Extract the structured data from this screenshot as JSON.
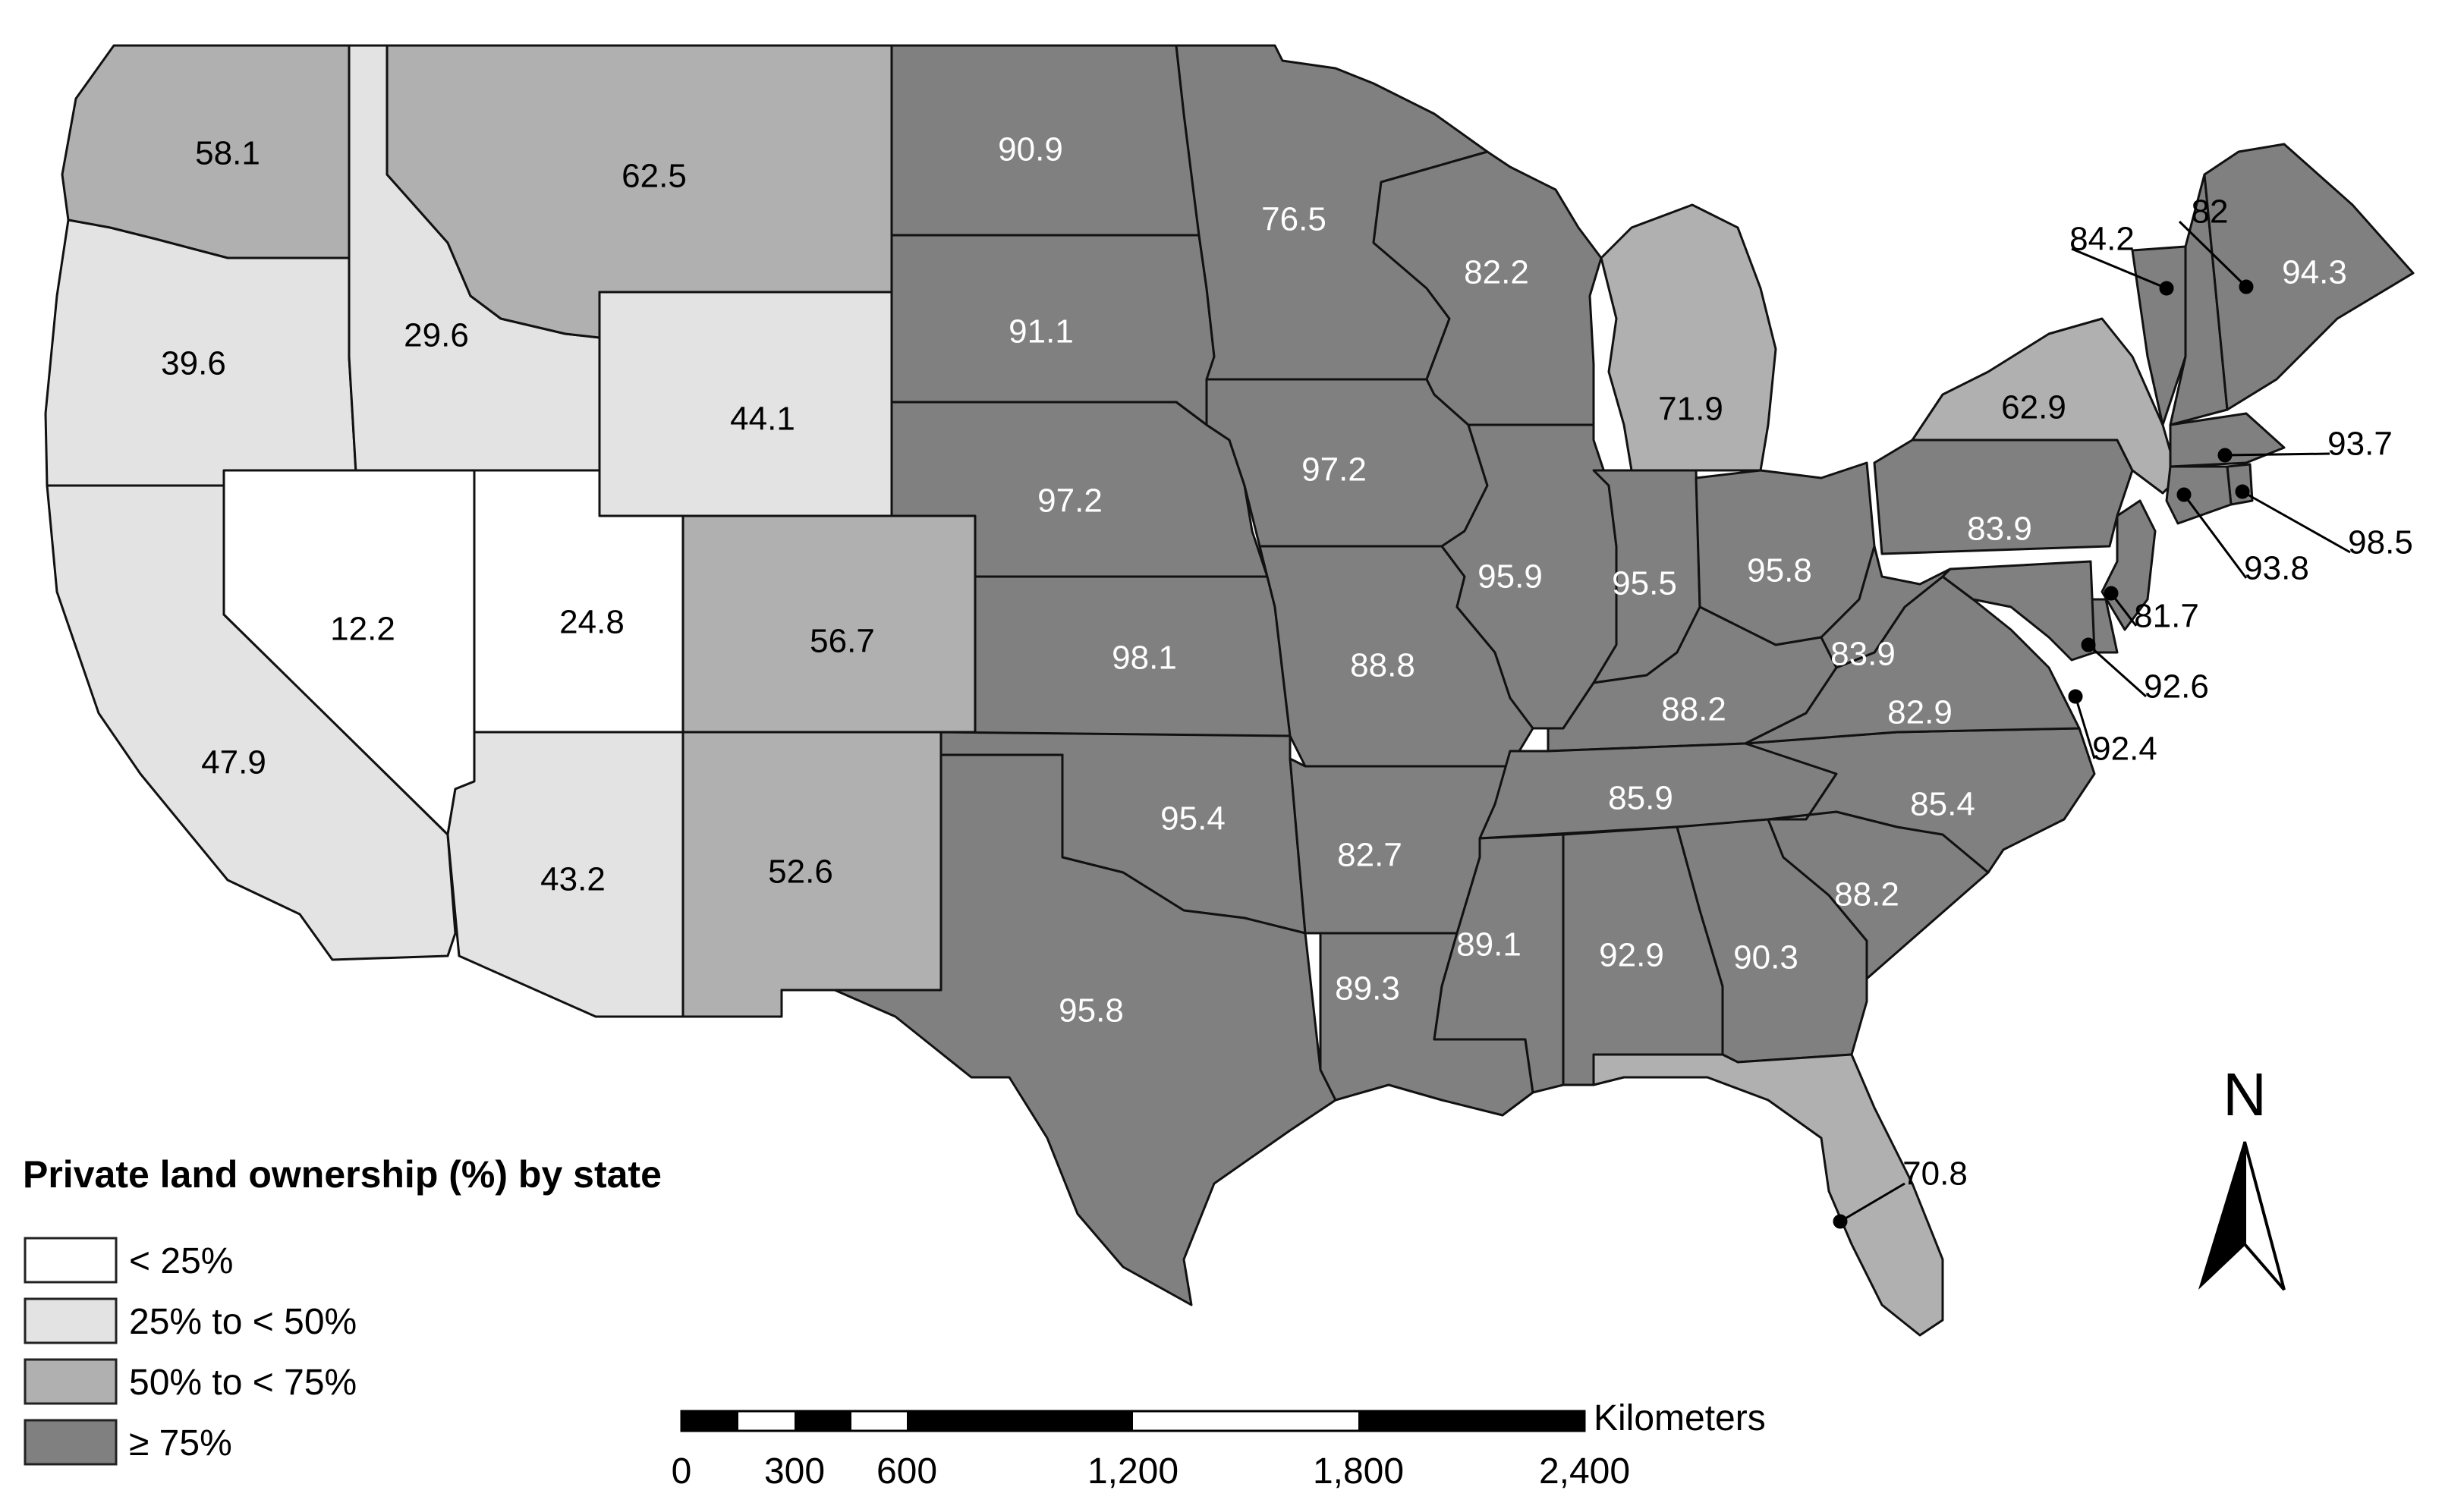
{
  "legend": {
    "title": "Private land ownership (%) by state",
    "classes": [
      {
        "label": "< 25%",
        "color": "#ffffff"
      },
      {
        "label": "25% to < 50%",
        "color": "#e3e3e3"
      },
      {
        "label": "50% to < 75%",
        "color": "#b0b0b0"
      },
      {
        "label": "≥ 75%",
        "color": "#808080"
      }
    ]
  },
  "north_arrow": {
    "label": "N"
  },
  "scale_bar": {
    "unit": "Kilometers",
    "ticks": [
      "0",
      "300",
      "600",
      "1,200",
      "1,800",
      "2,400"
    ]
  },
  "states": [
    {
      "id": "WA",
      "value": "58.1"
    },
    {
      "id": "OR",
      "value": "39.6"
    },
    {
      "id": "ID",
      "value": "29.6"
    },
    {
      "id": "MT",
      "value": "62.5"
    },
    {
      "id": "WY",
      "value": "44.1"
    },
    {
      "id": "CA",
      "value": "47.9"
    },
    {
      "id": "NV",
      "value": "12.2"
    },
    {
      "id": "UT",
      "value": "24.8"
    },
    {
      "id": "CO",
      "value": "56.7"
    },
    {
      "id": "AZ",
      "value": "43.2"
    },
    {
      "id": "NM",
      "value": "52.6"
    },
    {
      "id": "ND",
      "value": "90.9"
    },
    {
      "id": "SD",
      "value": "91.1"
    },
    {
      "id": "NE",
      "value": "97.2"
    },
    {
      "id": "KS",
      "value": "98.1"
    },
    {
      "id": "OK",
      "value": "95.4"
    },
    {
      "id": "TX",
      "value": "95.8"
    },
    {
      "id": "MN",
      "value": "76.5"
    },
    {
      "id": "IA",
      "value": "97.2"
    },
    {
      "id": "MO",
      "value": "88.8"
    },
    {
      "id": "AR",
      "value": "82.7"
    },
    {
      "id": "LA",
      "value": "89.3"
    },
    {
      "id": "WI",
      "value": "82.2"
    },
    {
      "id": "IL",
      "value": "95.9"
    },
    {
      "id": "MI",
      "value": "71.9"
    },
    {
      "id": "IN",
      "value": "95.5"
    },
    {
      "id": "OH",
      "value": "95.8"
    },
    {
      "id": "KY",
      "value": "88.2"
    },
    {
      "id": "TN",
      "value": "85.9"
    },
    {
      "id": "MS",
      "value": "89.1"
    },
    {
      "id": "AL",
      "value": "92.9"
    },
    {
      "id": "GA",
      "value": "90.3"
    },
    {
      "id": "FL",
      "value": "70.8"
    },
    {
      "id": "SC",
      "value": "88.2"
    },
    {
      "id": "NC",
      "value": "85.4"
    },
    {
      "id": "VA",
      "value": "82.9"
    },
    {
      "id": "WV",
      "value": "83.9"
    },
    {
      "id": "PA",
      "value": "83.9"
    },
    {
      "id": "NY",
      "value": "62.9"
    },
    {
      "id": "VT",
      "value": "84.2"
    },
    {
      "id": "NH",
      "value": "82"
    },
    {
      "id": "ME",
      "value": "94.3"
    },
    {
      "id": "MA",
      "value": "93.7"
    },
    {
      "id": "RI",
      "value": "98.5"
    },
    {
      "id": "CT",
      "value": "93.8"
    },
    {
      "id": "NJ",
      "value": "81.7"
    },
    {
      "id": "DE",
      "value": "92.6"
    },
    {
      "id": "MD",
      "value": "92.4"
    }
  ]
}
